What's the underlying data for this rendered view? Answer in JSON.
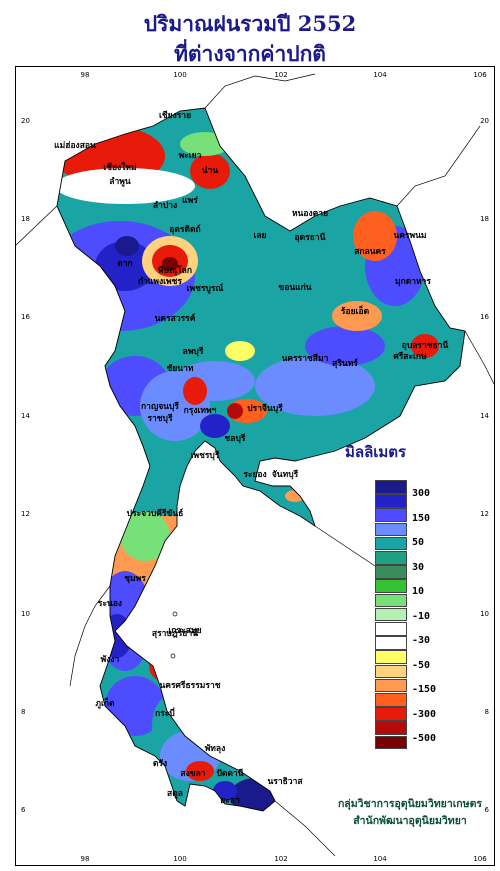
{
  "title": {
    "line1": "ปริมาณฝนรวมปี  2552",
    "line2": "ที่ต่างจากค่าปกติ"
  },
  "axes": {
    "lon_ticks": [
      "98",
      "100",
      "102",
      "104",
      "106"
    ],
    "lat_ticks": [
      "20",
      "18",
      "16",
      "14",
      "12",
      "10",
      "8",
      "6"
    ]
  },
  "legend": {
    "title": "มิลลิเมตร",
    "colors": [
      "#1a1a8c",
      "#2222c8",
      "#4d4dff",
      "#6b8cff",
      "#1aa4a4",
      "#20a080",
      "#3a8c5a",
      "#34c234",
      "#78e078",
      "#b4f0b4",
      "#ffffff",
      "#ffffff",
      "#ffff66",
      "#ffd280",
      "#ff9a50",
      "#ff6020",
      "#e81a0a",
      "#b40a0a",
      "#780000"
    ],
    "labels": [
      "300",
      "150",
      "50",
      "30",
      "10",
      "-10",
      "-30",
      "-50",
      "-150",
      "-300",
      "-500"
    ]
  },
  "provinces": [
    "เชียงราย",
    "แม่ฮ่องสอน",
    "เชียงใหม่",
    "ลำพูน",
    "น่าน",
    "พะเยา",
    "แพร่",
    "ลำปาง",
    "อุตรดิตถ์",
    "หนองคาย",
    "เลย",
    "อุดรธานี",
    "นครพนม",
    "สกลนคร",
    "มุกดาหาร",
    "ตาก",
    "พิษณุโลก",
    "เพชรบูรณ์",
    "กำแพงเพชร",
    "ขอนแก่น",
    "นครสวรรค์",
    "ร้อยเอ็ด",
    "อุบลราชธานี",
    "ลพบุรี",
    "นครราชสีมา",
    "สุรินทร์",
    "ชัยนาท",
    "ศรีสะเกษ",
    "กาญจนบุรี",
    "ปราจีนบุรี",
    "กรุงเทพฯ",
    "ราชบุรี",
    "ชลบุรี",
    "เพชรบุรี",
    "ระยอง",
    "จันทบุรี",
    "ประจวบคีรีขันธ์",
    "ชุมพร",
    "ระนอง",
    "สุราษฎร์ธานี",
    "นครศรีธรรมราช",
    "พังงา",
    "ภูเก็ต",
    "กระบี่",
    "ตรัง",
    "พัทลุง",
    "สงขลา",
    "สตูล",
    "ปัตตานี",
    "ยะลา",
    "นราธิวาส",
    "เกาะสมุย"
  ],
  "credit": {
    "line1": "กลุ่มวิชาการอุตุนิยมวิทยาเกษตร",
    "line2": "สำนักพัฒนาอุตุนิยมวิทยา"
  }
}
